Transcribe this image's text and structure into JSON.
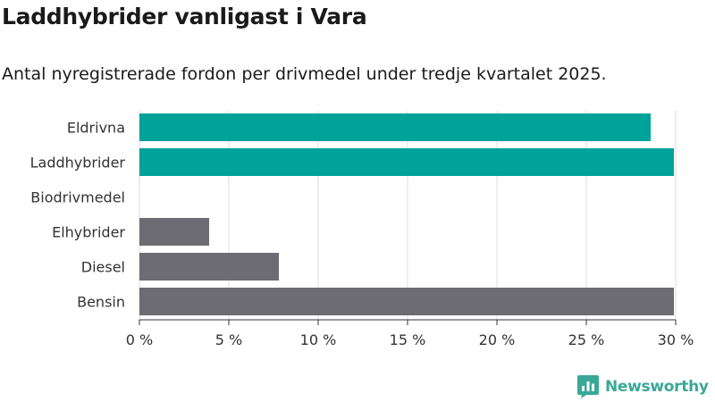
{
  "title": "Laddhybrider vanligast i Vara",
  "subtitle": "Antal nyregistrerade fordon per drivmedel under tredje kvartalet 2025.",
  "brand": {
    "name": "Newsworthy",
    "icon": "newsworthy-logo-icon",
    "color": "#3aa897"
  },
  "colors": {
    "highlight": "#00a39a",
    "default": "#6d6c72",
    "grid": "#dddddd",
    "text": "#333333"
  },
  "chart_data": {
    "type": "bar",
    "orientation": "horizontal",
    "title": "Laddhybrider vanligast i Vara",
    "subtitle": "Antal nyregistrerade fordon per drivmedel under tredje kvartalet 2025.",
    "xlabel": "",
    "ylabel": "",
    "categories": [
      "Eldrivna",
      "Laddhybrider",
      "Biodrivmedel",
      "Elhybrider",
      "Diesel",
      "Bensin"
    ],
    "values": [
      28.6,
      29.9,
      0,
      3.9,
      7.8,
      29.9
    ],
    "highlight": [
      true,
      true,
      true,
      false,
      false,
      false
    ],
    "xlim": [
      0,
      30
    ],
    "ticks": [
      0,
      5,
      10,
      15,
      20,
      25,
      30
    ],
    "tick_labels": [
      "0 %",
      "5 %",
      "10 %",
      "15 %",
      "20 %",
      "25 %",
      "30 %"
    ],
    "grid": true
  }
}
